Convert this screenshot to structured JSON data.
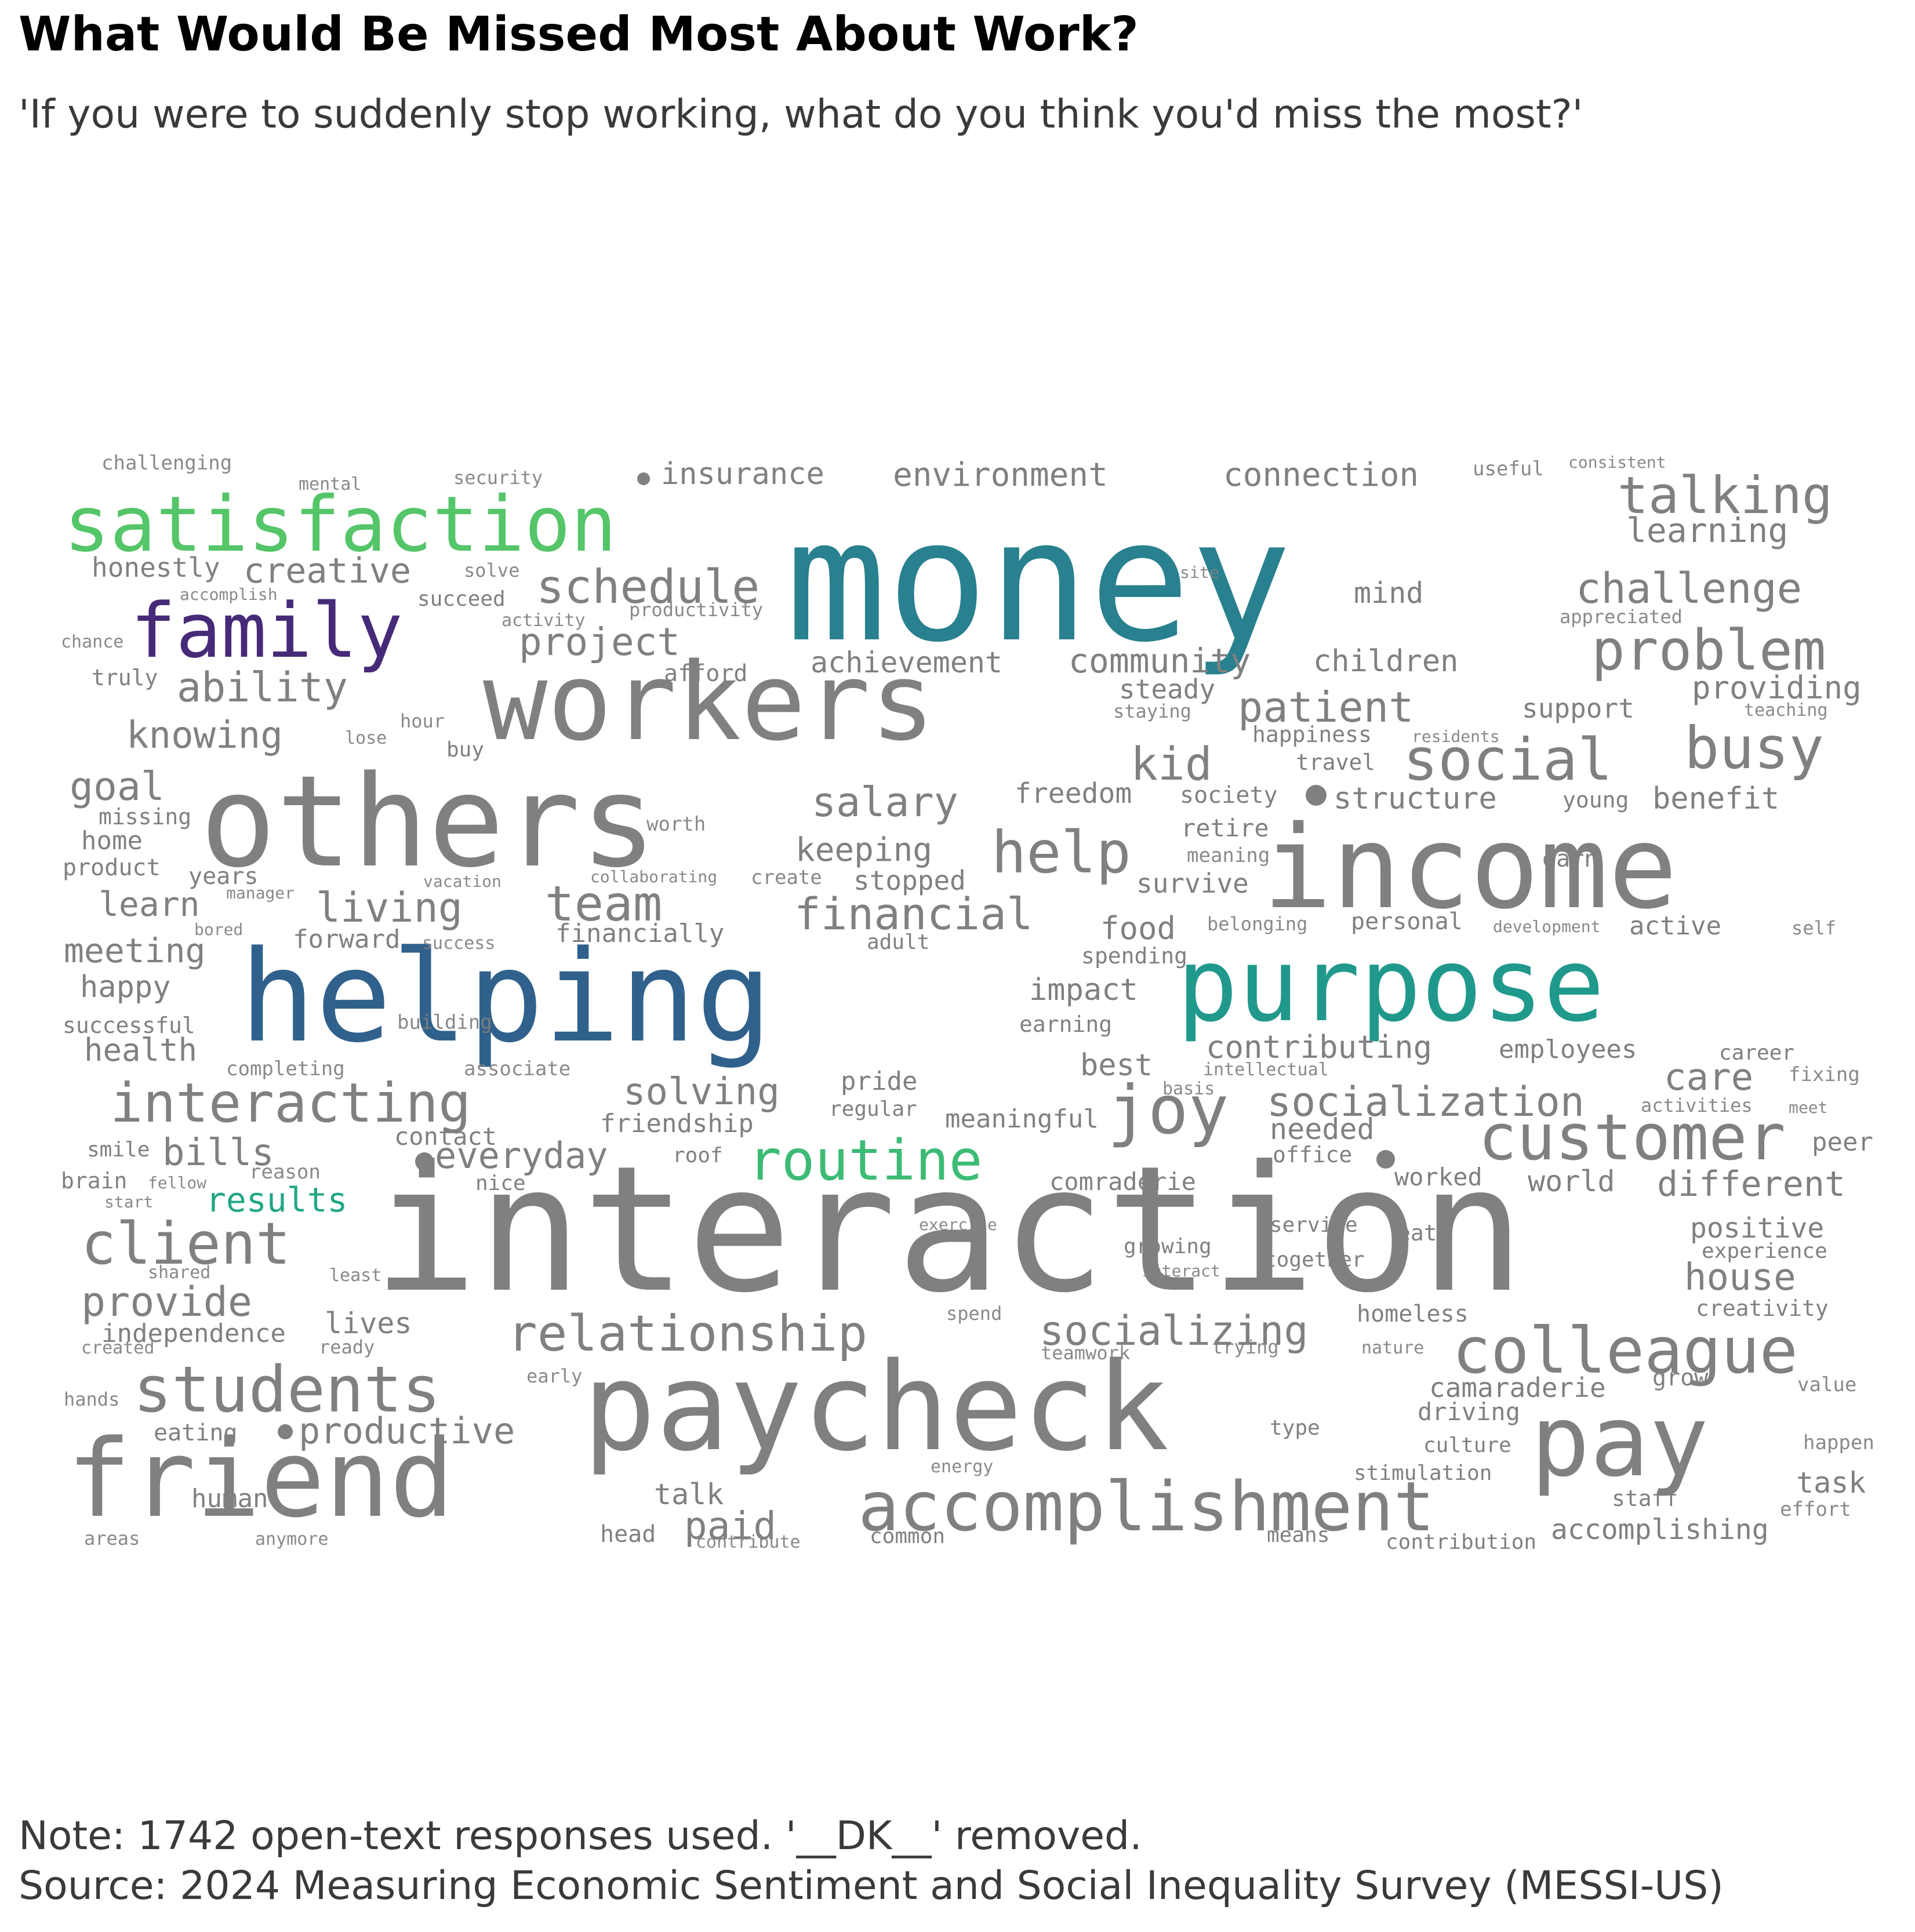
{
  "title": "What Would Be Missed Most About Work?",
  "subtitle": "'If you were to suddenly stop working, what do you think you'd miss the most?'",
  "note": "Note: 1742 open-text responses used. '__DK__' removed.",
  "source": "Source: 2024 Measuring Economic Sentiment and Social Inequality Survey (MESSI-US)",
  "colors": {
    "default": "#808080",
    "money": "#29808f",
    "purpose": "#20998c",
    "helping": "#30618c",
    "family": "#462a78",
    "satisfaction": "#54c568",
    "routine": "#3cbb75",
    "results": "#22a785"
  },
  "chart_data": {
    "type": "wordcloud",
    "words": [
      {
        "text": "interaction",
        "weight": 300
      },
      {
        "text": "money",
        "weight": 290
      },
      {
        "text": "others",
        "weight": 218
      },
      {
        "text": "helping",
        "weight": 218
      },
      {
        "text": "paycheck",
        "weight": 210
      },
      {
        "text": "income",
        "weight": 198
      },
      {
        "text": "workers",
        "weight": 185
      },
      {
        "text": "friend",
        "weight": 185
      },
      {
        "text": "purpose",
        "weight": 175
      },
      {
        "text": "pay",
        "weight": 170
      },
      {
        "text": "accomplishment",
        "weight": 118
      },
      {
        "text": "satisfaction",
        "weight": 132
      },
      {
        "text": "family",
        "weight": 130
      },
      {
        "text": "colleague",
        "weight": 110
      },
      {
        "text": "customer",
        "weight": 110
      },
      {
        "text": "students",
        "weight": 110
      },
      {
        "text": "joy",
        "weight": 116
      },
      {
        "text": "client",
        "weight": 100
      },
      {
        "text": "social",
        "weight": 100
      },
      {
        "text": "busy",
        "weight": 100
      },
      {
        "text": "help",
        "weight": 100
      },
      {
        "text": "problem",
        "weight": 96
      },
      {
        "text": "routine",
        "weight": 96
      },
      {
        "text": "interacting",
        "weight": 94
      },
      {
        "text": "relationship",
        "weight": 86
      },
      {
        "text": "talking",
        "weight": 88
      },
      {
        "text": "team",
        "weight": 84
      },
      {
        "text": "schedule",
        "weight": 80
      },
      {
        "text": "financial",
        "weight": 76
      },
      {
        "text": "kid",
        "weight": 78
      },
      {
        "text": "challenge",
        "weight": 72
      },
      {
        "text": "patient",
        "weight": 72
      },
      {
        "text": "socialization",
        "weight": 70
      },
      {
        "text": "socializing",
        "weight": 70
      },
      {
        "text": "provide",
        "weight": 70
      },
      {
        "text": "salary",
        "weight": 70
      },
      {
        "text": "living",
        "weight": 70
      },
      {
        "text": "ability",
        "weight": 70
      },
      {
        "text": "goal",
        "weight": 68
      },
      {
        "text": "project",
        "weight": 66
      },
      {
        "text": "solving",
        "weight": 64
      },
      {
        "text": "productive",
        "weight": 62
      },
      {
        "text": "paid",
        "weight": 66
      },
      {
        "text": "house",
        "weight": 64
      },
      {
        "text": "bills",
        "weight": 64
      },
      {
        "text": "everyday",
        "weight": 62
      },
      {
        "text": "knowing",
        "weight": 64
      },
      {
        "text": "different",
        "weight": 60
      },
      {
        "text": "creative",
        "weight": 60
      },
      {
        "text": "care",
        "weight": 64
      },
      {
        "text": "lives",
        "weight": 50
      },
      {
        "text": "meeting",
        "weight": 58
      },
      {
        "text": "keeping",
        "weight": 56
      },
      {
        "text": "learn",
        "weight": 58
      },
      {
        "text": "community",
        "weight": 58
      },
      {
        "text": "environment",
        "weight": 56
      },
      {
        "text": "connection",
        "weight": 56
      },
      {
        "text": "contributing",
        "weight": 54
      },
      {
        "text": "insurance",
        "weight": 52
      },
      {
        "text": "structure",
        "weight": 52
      },
      {
        "text": "achievement",
        "weight": 50
      },
      {
        "text": "children",
        "weight": 52
      },
      {
        "text": "learning",
        "weight": 58
      },
      {
        "text": "providing",
        "weight": 54
      },
      {
        "text": "freedom",
        "weight": 48
      },
      {
        "text": "benefit",
        "weight": 52
      },
      {
        "text": "food",
        "weight": 54
      },
      {
        "text": "impact",
        "weight": 52
      },
      {
        "text": "health",
        "weight": 54
      },
      {
        "text": "happy",
        "weight": 52
      },
      {
        "text": "best",
        "weight": 52
      },
      {
        "text": "accomplishing",
        "weight": 48
      },
      {
        "text": "positive",
        "weight": 48
      },
      {
        "text": "camaraderie",
        "weight": 46
      },
      {
        "text": "steady",
        "weight": 46
      },
      {
        "text": "stopped",
        "weight": 46
      },
      {
        "text": "survive",
        "weight": 46
      },
      {
        "text": "mind",
        "weight": 50
      },
      {
        "text": "honestly",
        "weight": 46
      },
      {
        "text": "needed",
        "weight": 50
      },
      {
        "text": "world",
        "weight": 50
      },
      {
        "text": "task",
        "weight": 50
      },
      {
        "text": "talk",
        "weight": 50
      },
      {
        "text": "independence",
        "weight": 44
      },
      {
        "text": "support",
        "weight": 46
      },
      {
        "text": "employees",
        "weight": 44
      },
      {
        "text": "meaningful",
        "weight": 44
      },
      {
        "text": "human",
        "weight": 44
      },
      {
        "text": "results",
        "weight": 58
      },
      {
        "text": "forward",
        "weight": 44
      },
      {
        "text": "financially",
        "weight": 44
      },
      {
        "text": "pride",
        "weight": 44
      },
      {
        "text": "friendship",
        "weight": 44
      },
      {
        "text": "contact",
        "weight": 42
      },
      {
        "text": "comraderie",
        "weight": 42
      },
      {
        "text": "active",
        "weight": 44
      },
      {
        "text": "personal",
        "weight": 40
      },
      {
        "text": "peer",
        "weight": 44
      },
      {
        "text": "retire",
        "weight": 42
      },
      {
        "text": "society",
        "weight": 40
      },
      {
        "text": "worked",
        "weight": 42
      },
      {
        "text": "homeless",
        "weight": 40
      },
      {
        "text": "driving",
        "weight": 42
      },
      {
        "text": "grow",
        "weight": 40
      },
      {
        "text": "eating",
        "weight": 40
      },
      {
        "text": "head",
        "weight": 40
      },
      {
        "text": "happiness",
        "weight": 38
      },
      {
        "text": "travel",
        "weight": 38
      },
      {
        "text": "truly",
        "weight": 38
      },
      {
        "text": "afford",
        "weight": 40
      },
      {
        "text": "home",
        "weight": 44
      },
      {
        "text": "product",
        "weight": 40
      },
      {
        "text": "years",
        "weight": 40
      },
      {
        "text": "earn",
        "weight": 40
      },
      {
        "text": "office",
        "weight": 38
      },
      {
        "text": "staff",
        "weight": 38
      },
      {
        "text": "creativity",
        "weight": 38
      },
      {
        "text": "experience",
        "weight": 36
      },
      {
        "text": "eat",
        "weight": 38
      },
      {
        "text": "spending",
        "weight": 38
      },
      {
        "text": "earning",
        "weight": 38
      },
      {
        "text": "missing",
        "weight": 38
      },
      {
        "text": "successful",
        "weight": 38
      },
      {
        "text": "smile",
        "weight": 36
      },
      {
        "text": "brain",
        "weight": 38
      },
      {
        "text": "young",
        "weight": 38
      },
      {
        "text": "culture",
        "weight": 36
      },
      {
        "text": "type",
        "weight": 36
      },
      {
        "text": "service",
        "weight": 36
      },
      {
        "text": "together",
        "weight": 36
      },
      {
        "text": "growing",
        "weight": 36
      },
      {
        "text": "means",
        "weight": 36
      },
      {
        "text": "common",
        "weight": 36
      },
      {
        "text": "stimulation",
        "weight": 36
      },
      {
        "text": "contribution",
        "weight": 36
      },
      {
        "text": "regular",
        "weight": 36
      },
      {
        "text": "succeed",
        "weight": 36
      },
      {
        "text": "roof",
        "weight": 36
      },
      {
        "text": "nice",
        "weight": 36
      },
      {
        "text": "buy",
        "weight": 36
      },
      {
        "text": "career",
        "weight": 36
      },
      {
        "text": "adult",
        "weight": 36
      },
      {
        "text": "building",
        "weight": 34
      },
      {
        "text": "completing",
        "weight": 34
      },
      {
        "text": "associate",
        "weight": 34
      },
      {
        "text": "reason",
        "weight": 34
      },
      {
        "text": "worth",
        "weight": 34
      },
      {
        "text": "create",
        "weight": 34
      },
      {
        "text": "challenging",
        "weight": 34
      },
      {
        "text": "useful",
        "weight": 34
      },
      {
        "text": "meaning",
        "weight": 34
      },
      {
        "text": "belonging",
        "weight": 32
      },
      {
        "text": "staying",
        "weight": 32
      },
      {
        "text": "productivity",
        "weight": 32
      },
      {
        "text": "security",
        "weight": 32
      },
      {
        "text": "solve",
        "weight": 32
      },
      {
        "text": "activities",
        "weight": 32
      },
      {
        "text": "fixing",
        "weight": 34
      },
      {
        "text": "value",
        "weight": 34
      },
      {
        "text": "happen",
        "weight": 34
      },
      {
        "text": "effort",
        "weight": 34
      },
      {
        "text": "early",
        "weight": 32
      },
      {
        "text": "trying",
        "weight": 32
      },
      {
        "text": "teamwork",
        "weight": 32
      },
      {
        "text": "spend",
        "weight": 32
      },
      {
        "text": "appreciated",
        "weight": 32
      },
      {
        "text": "hour",
        "weight": 32
      },
      {
        "text": "ready",
        "weight": 32
      },
      {
        "text": "least",
        "weight": 30
      },
      {
        "text": "success",
        "weight": 30
      },
      {
        "text": "energy",
        "weight": 30
      },
      {
        "text": "anymore",
        "weight": 30
      },
      {
        "text": "areas",
        "weight": 32
      },
      {
        "text": "hands",
        "weight": 32
      },
      {
        "text": "created",
        "weight": 30
      },
      {
        "text": "shared",
        "weight": 30
      },
      {
        "text": "contribute",
        "weight": 30
      },
      {
        "text": "nature",
        "weight": 30
      },
      {
        "text": "mental",
        "weight": 30
      },
      {
        "text": "chance",
        "weight": 30
      },
      {
        "text": "activity",
        "weight": 30
      },
      {
        "text": "accomplish",
        "weight": 28
      },
      {
        "text": "lose",
        "weight": 30
      },
      {
        "text": "collaborating",
        "weight": 28
      },
      {
        "text": "manager",
        "weight": 28
      },
      {
        "text": "vacation",
        "weight": 28
      },
      {
        "text": "bored",
        "weight": 28
      },
      {
        "text": "fellow",
        "weight": 28
      },
      {
        "text": "start",
        "weight": 28
      },
      {
        "text": "exercise",
        "weight": 28
      },
      {
        "text": "interact",
        "weight": 28
      },
      {
        "text": "intellectual",
        "weight": 30
      },
      {
        "text": "basis",
        "weight": 30
      },
      {
        "text": "meet",
        "weight": 28
      },
      {
        "text": "self",
        "weight": 32
      },
      {
        "text": "development",
        "weight": 28
      },
      {
        "text": "teaching",
        "weight": 30
      },
      {
        "text": "residents",
        "weight": 28
      },
      {
        "text": "consistent",
        "weight": 28
      },
      {
        "text": "site",
        "weight": 28
      }
    ]
  }
}
